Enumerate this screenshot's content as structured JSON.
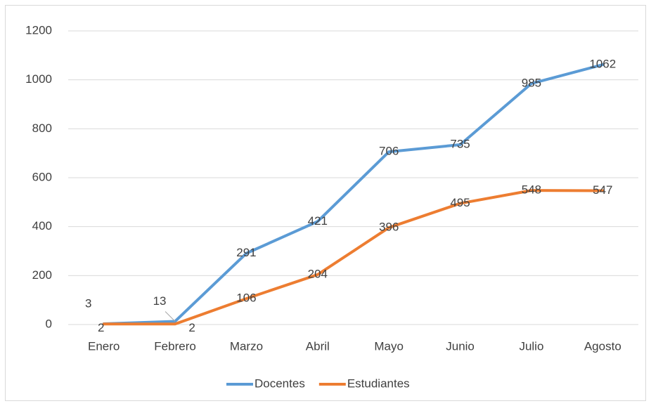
{
  "chart_data": {
    "type": "line",
    "categories": [
      "Enero",
      "Febrero",
      "Marzo",
      "Abril",
      "Mayo",
      "Junio",
      "Julio",
      "Agosto"
    ],
    "series": [
      {
        "name": "Docentes",
        "color": "#5b9bd5",
        "values": [
          3,
          13,
          291,
          421,
          706,
          735,
          985,
          1062
        ]
      },
      {
        "name": "Estudiantes",
        "color": "#ed7d31",
        "values": [
          2,
          2,
          106,
          204,
          396,
          495,
          548,
          547
        ]
      }
    ],
    "ylim": [
      0,
      1200
    ],
    "yticks": [
      0,
      200,
      400,
      600,
      800,
      1000,
      1200
    ],
    "grid": true,
    "legend": "bottom"
  }
}
